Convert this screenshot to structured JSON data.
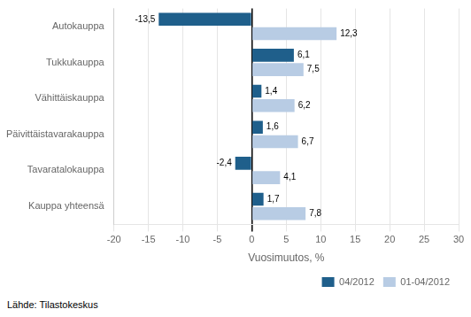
{
  "chart_data": {
    "type": "bar",
    "orientation": "horizontal",
    "categories": [
      "Autokauppa",
      "Tukkukauppa",
      "Vähittäiskauppa",
      "Päivittäistavarakauppa",
      "Tavaratalokauppa",
      "Kauppa yhteensä"
    ],
    "series": [
      {
        "name": "04/2012",
        "color": "#1F5F8B",
        "values": [
          -13.5,
          6.1,
          1.4,
          1.6,
          -2.4,
          1.7
        ],
        "value_labels": [
          "-13,5",
          "6,1",
          "1,4",
          "1,6",
          "-2,4",
          "1,7"
        ]
      },
      {
        "name": "01-04/2012",
        "color": "#B8CCE4",
        "values": [
          12.3,
          7.5,
          6.2,
          6.7,
          4.1,
          7.8
        ],
        "value_labels": [
          "12,3",
          "7,5",
          "6,2",
          "6,7",
          "4,1",
          "7,8"
        ]
      }
    ],
    "xlabel": "Vuosimuutos, %",
    "xlim": [
      -20,
      30
    ],
    "xticks": [
      -20,
      -15,
      -10,
      -5,
      0,
      5,
      10,
      15,
      20,
      25,
      30
    ],
    "grid": true,
    "legend": "lower right",
    "data_labels": true,
    "annotations": [
      "Lähde: Tilastokeskus"
    ]
  }
}
